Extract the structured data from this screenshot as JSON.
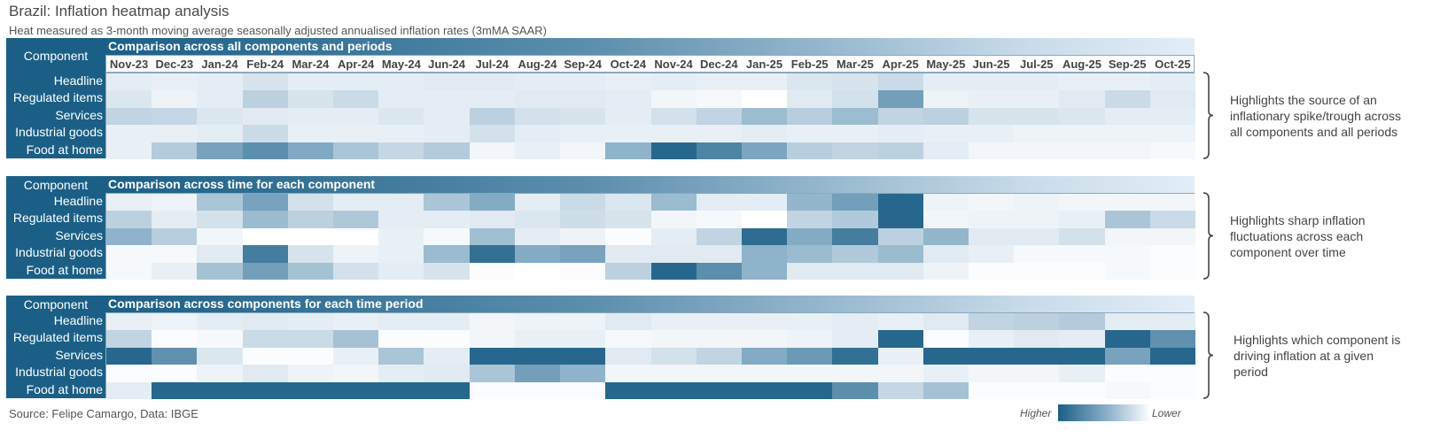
{
  "title": "Brazil: Inflation heatmap analysis",
  "subtitle": "Heat measured as 3-month moving average seasonally adjusted annualised inflation rates (3mMA SAAR)",
  "chart_data": {
    "type": "heatmap",
    "months": [
      "Nov-23",
      "Dec-23",
      "Jan-24",
      "Feb-24",
      "Mar-24",
      "Apr-24",
      "May-24",
      "Jun-24",
      "Jul-24",
      "Aug-24",
      "Sep-24",
      "Oct-24",
      "Nov-24",
      "Dec-24",
      "Jan-25",
      "Feb-25",
      "Mar-25",
      "Apr-25",
      "May-25",
      "Jun-25",
      "Jul-25",
      "Aug-25",
      "Sep-25",
      "Oct-25"
    ],
    "components": [
      "Headline",
      "Regulated items",
      "Services",
      "Industrial goods",
      "Food at home"
    ],
    "component_header": "Component",
    "scale": {
      "min": 0,
      "max": 1,
      "note": "Relative heat intensity (1 = higher, 0 = lower)"
    },
    "panels": [
      {
        "title": "Comparison across all components and periods",
        "note": "Highlights the source of an inflationary spike/trough across all components and all periods",
        "values": [
          [
            0.12,
            0.1,
            0.12,
            0.18,
            0.12,
            0.12,
            0.12,
            0.14,
            0.14,
            0.12,
            0.12,
            0.1,
            0.12,
            0.1,
            0.1,
            0.16,
            0.18,
            0.24,
            0.12,
            0.12,
            0.12,
            0.1,
            0.1,
            0.12
          ],
          [
            0.16,
            0.08,
            0.12,
            0.3,
            0.18,
            0.24,
            0.12,
            0.12,
            0.12,
            0.14,
            0.14,
            0.12,
            0.06,
            0.04,
            0.0,
            0.14,
            0.2,
            0.62,
            0.08,
            0.1,
            0.1,
            0.14,
            0.24,
            0.14
          ],
          [
            0.28,
            0.26,
            0.16,
            0.14,
            0.12,
            0.12,
            0.16,
            0.12,
            0.3,
            0.2,
            0.18,
            0.12,
            0.2,
            0.28,
            0.44,
            0.32,
            0.44,
            0.28,
            0.3,
            0.18,
            0.18,
            0.16,
            0.12,
            0.12
          ],
          [
            0.1,
            0.1,
            0.12,
            0.24,
            0.1,
            0.1,
            0.1,
            0.12,
            0.2,
            0.12,
            0.1,
            0.1,
            0.1,
            0.1,
            0.12,
            0.1,
            0.1,
            0.12,
            0.1,
            0.1,
            0.08,
            0.08,
            0.08,
            0.08
          ],
          [
            0.1,
            0.34,
            0.6,
            0.72,
            0.56,
            0.38,
            0.26,
            0.34,
            0.06,
            0.1,
            0.06,
            0.5,
            0.95,
            0.78,
            0.58,
            0.32,
            0.28,
            0.3,
            0.12,
            0.06,
            0.06,
            0.06,
            0.06,
            0.04
          ]
        ]
      },
      {
        "title": "Comparison across time for each component",
        "note": "Highlights sharp inflation fluctuations across each component over time",
        "values": [
          [
            0.1,
            0.08,
            0.38,
            0.6,
            0.2,
            0.12,
            0.12,
            0.38,
            0.55,
            0.12,
            0.24,
            0.16,
            0.45,
            0.12,
            0.12,
            0.48,
            0.62,
            0.95,
            0.08,
            0.06,
            0.08,
            0.06,
            0.06,
            0.06
          ],
          [
            0.3,
            0.12,
            0.2,
            0.45,
            0.3,
            0.36,
            0.12,
            0.12,
            0.14,
            0.16,
            0.22,
            0.18,
            0.06,
            0.04,
            0.0,
            0.28,
            0.35,
            0.95,
            0.06,
            0.08,
            0.08,
            0.1,
            0.38,
            0.24
          ],
          [
            0.5,
            0.32,
            0.06,
            0.0,
            0.0,
            0.0,
            0.1,
            0.04,
            0.42,
            0.12,
            0.08,
            0.02,
            0.12,
            0.28,
            0.92,
            0.55,
            0.82,
            0.3,
            0.48,
            0.14,
            0.14,
            0.2,
            0.06,
            0.06
          ],
          [
            0.04,
            0.04,
            0.14,
            0.82,
            0.18,
            0.08,
            0.1,
            0.45,
            0.9,
            0.55,
            0.6,
            0.14,
            0.14,
            0.14,
            0.5,
            0.45,
            0.35,
            0.45,
            0.14,
            0.1,
            0.04,
            0.04,
            0.04,
            0.02
          ],
          [
            0.04,
            0.1,
            0.4,
            0.62,
            0.4,
            0.2,
            0.12,
            0.18,
            0.02,
            0.0,
            0.02,
            0.3,
            0.95,
            0.72,
            0.5,
            0.14,
            0.14,
            0.14,
            0.08,
            0.02,
            0.02,
            0.02,
            0.04,
            0.02
          ]
        ]
      },
      {
        "title": "Comparison across components for each time period",
        "note": "Highlights which component is driving inflation at a given period",
        "values": [
          [
            0.1,
            0.08,
            0.12,
            0.14,
            0.12,
            0.1,
            0.12,
            0.12,
            0.06,
            0.08,
            0.08,
            0.14,
            0.1,
            0.1,
            0.1,
            0.1,
            0.12,
            0.1,
            0.14,
            0.28,
            0.3,
            0.34,
            0.12,
            0.12
          ],
          [
            0.28,
            0.02,
            0.04,
            0.24,
            0.24,
            0.4,
            0.02,
            0.02,
            0.06,
            0.1,
            0.1,
            0.04,
            0.06,
            0.06,
            0.06,
            0.08,
            0.12,
            0.95,
            0.02,
            0.1,
            0.14,
            0.12,
            0.95,
            0.7
          ],
          [
            0.95,
            0.7,
            0.16,
            0.02,
            0.02,
            0.1,
            0.38,
            0.12,
            0.95,
            0.95,
            0.95,
            0.14,
            0.2,
            0.28,
            0.55,
            0.65,
            0.9,
            0.1,
            0.95,
            0.95,
            0.95,
            0.95,
            0.6,
            0.95
          ],
          [
            0.02,
            0.02,
            0.08,
            0.14,
            0.08,
            0.06,
            0.12,
            0.14,
            0.38,
            0.62,
            0.5,
            0.06,
            0.06,
            0.06,
            0.06,
            0.06,
            0.06,
            0.06,
            0.1,
            0.06,
            0.06,
            0.1,
            0.02,
            0.02
          ],
          [
            0.12,
            0.95,
            0.95,
            0.95,
            0.95,
            0.95,
            0.95,
            0.95,
            0.02,
            0.02,
            0.02,
            0.95,
            0.95,
            0.95,
            0.95,
            0.95,
            0.72,
            0.26,
            0.4,
            0.02,
            0.02,
            0.02,
            0.04,
            0.02
          ]
        ]
      }
    ]
  },
  "footer": {
    "source": "Source: Felipe Camargo, Data: IBGE",
    "legend_high": "Higher",
    "legend_low": "Lower"
  }
}
